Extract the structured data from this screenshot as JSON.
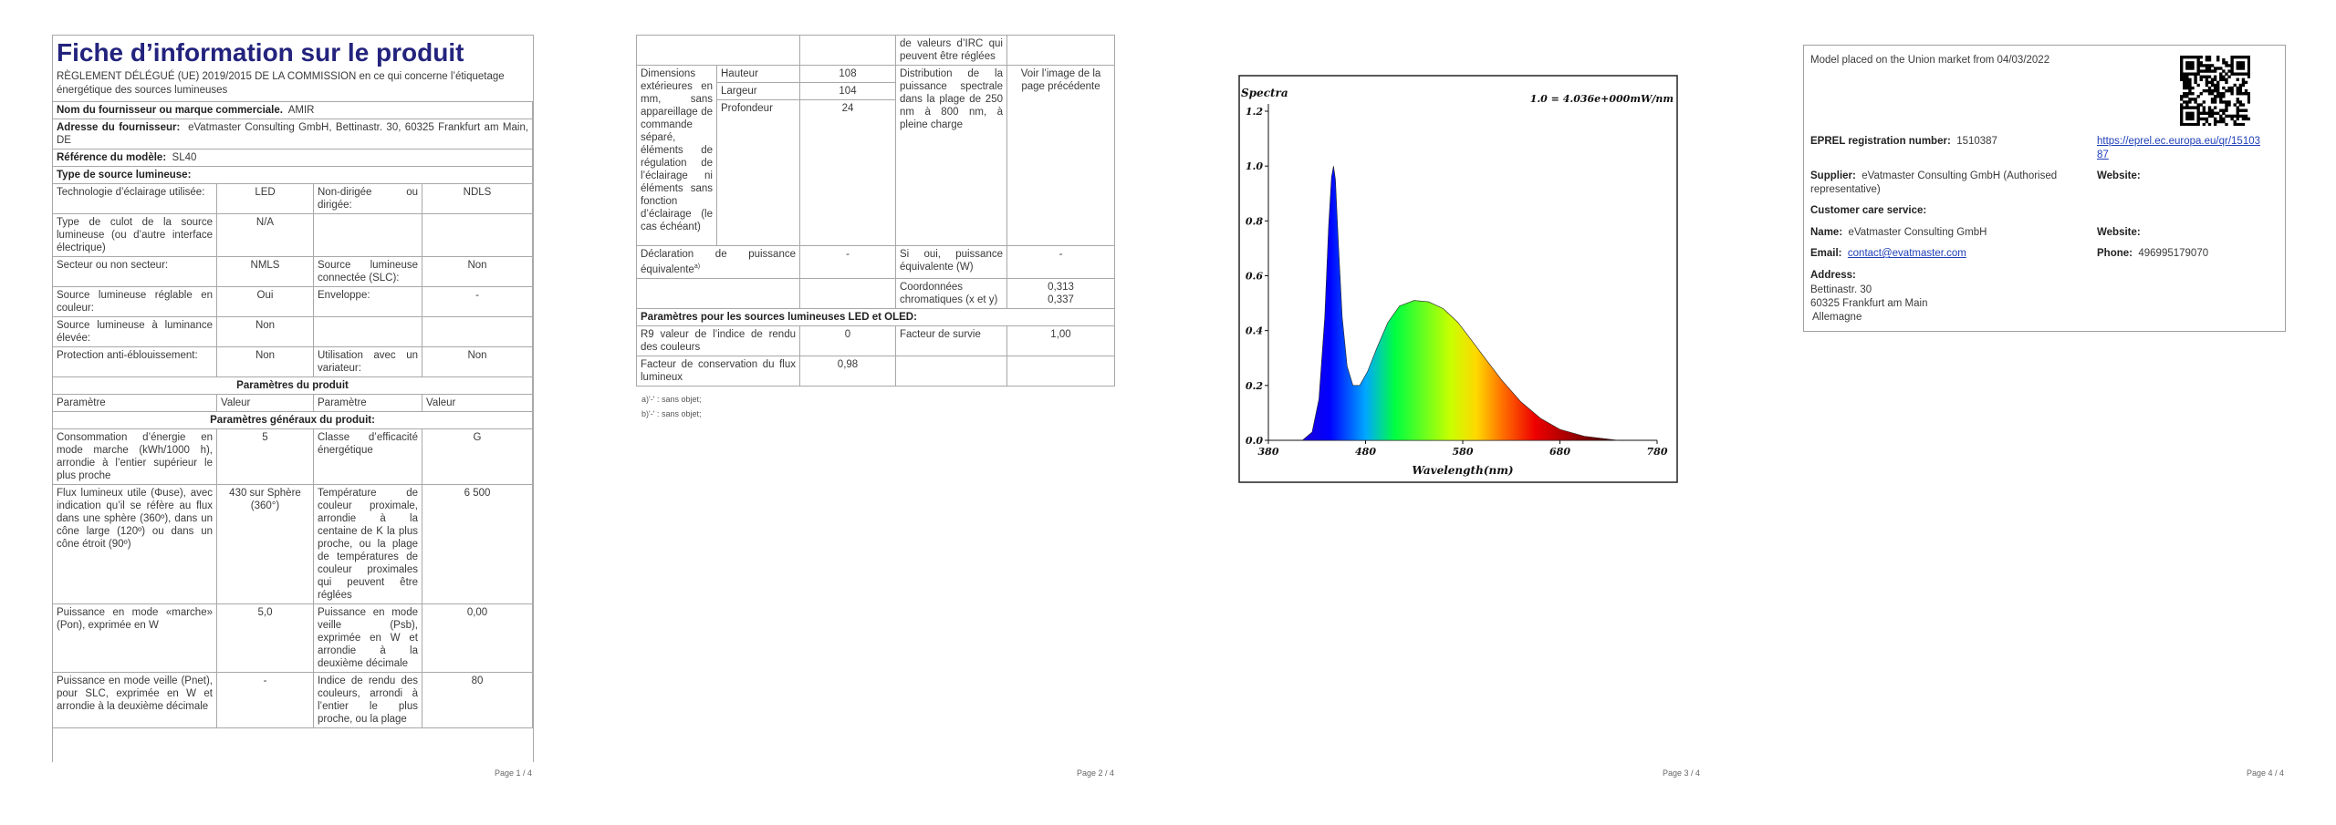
{
  "page1": {
    "title": "Fiche d’information sur le produit",
    "subtitle": "RÈGLEMENT DÉLÉGUÉ (UE) 2019/2015 DE LA COMMISSION en ce qui concerne l’étiquetage énergétique des sources lumineuses",
    "fields": [
      {
        "label": "Nom du fournisseur ou marque commerciale.",
        "value": "AMIR"
      },
      {
        "label": "Adresse du fournisseur:",
        "value": "eVatmaster Consulting GmbH, Bettinastr. 30, 60325 Frankfurt am Main, DE"
      },
      {
        "label": "Référence du modèle:",
        "value": "SL40"
      }
    ],
    "type_heading": "Type de source lumineuse:",
    "type_rows": [
      [
        "Technologie d’éclairage utilisée:",
        "LED",
        "Non-dirigée ou dirigée:",
        "NDLS"
      ],
      [
        "Type de culot de la source lumineuse (ou d’autre interface électrique)",
        "N/A",
        null,
        null
      ],
      [
        "Secteur ou non secteur:",
        "NMLS",
        "Source lumineuse connectée (SLC):",
        "Non"
      ],
      [
        "Source lumineuse réglable en couleur:",
        "Oui",
        "Enveloppe:",
        "-"
      ],
      [
        "Source lumineuse à luminance élevée:",
        "Non",
        null,
        null
      ],
      [
        "Protection anti-éblouissement:",
        "Non",
        "Utilisation avec un variateur:",
        "Non"
      ]
    ],
    "params_heading": "Paramètres du produit",
    "params_header": [
      "Paramètre",
      "Valeur",
      "Paramètre",
      "Valeur"
    ],
    "general_heading": "Paramètres généraux du produit:",
    "general_rows": [
      [
        "Consommation d’énergie en mode marche (kWh/1000 h), arrondie à l’entier supérieur le plus proche",
        "5",
        "Classe d’efficacité énergétique",
        "G"
      ],
      [
        "Flux lumineux utile (Φuse), avec indication qu’il se réfère au flux dans une sphère (360º), dans un cône large (120º) ou dans un cône étroit (90º)",
        "430 sur Sphère (360°)",
        "Température de couleur proximale, arrondie à la centaine de K la plus proche, ou la plage de températures de couleur proximales qui peuvent être réglées",
        "6 500"
      ],
      [
        "Puissance en mode «marche» (Pon), exprimée en W",
        "5,0",
        "Puissance en mode veille (Psb), exprimée en W et arrondie à la deuxième décimale",
        "0,00"
      ],
      [
        "Puissance en mode veille (Pnet), pour SLC, exprimée en W et arrondie à la deuxième décimale",
        "-",
        "Indice de rendu des couleurs, arrondi à l’entier le plus proche, ou la plage",
        "80"
      ]
    ],
    "footer": "Page 1 / 4"
  },
  "page2": {
    "top_text": "de valeurs d’IRC qui peuvent être réglées",
    "dimensions": {
      "label": "Dimensions extérieures en mm, sans appareillage de commande séparé, éléments de régulation de l’éclairage ni éléments sans fonction d’éclairage (le cas échéant)",
      "items": [
        {
          "name": "Hauteur",
          "value": "108"
        },
        {
          "name": "Largeur",
          "value": "104"
        },
        {
          "name": "Profondeur",
          "value": "24"
        }
      ]
    },
    "spd": {
      "label": "Distribution de la puissance spectrale dans la plage de 250 nm à 800 nm, à pleine charge",
      "value": "Voir l’image de la page précédente"
    },
    "equiv": {
      "label": "Déclaration de puissance équivalente",
      "note": "a)",
      "value": "-",
      "label2": "Si oui, puissance équivalente (W)",
      "value2": "-"
    },
    "chroma": {
      "label": "Coordonnées chromatiques (x et y)",
      "values": [
        "0,313",
        "0,337"
      ]
    },
    "led_heading": "Paramètres pour les sources lumineuses LED et OLED:",
    "r9": {
      "label": "R9 valeur de l’indice de rendu des couleurs",
      "value": "0",
      "label2": "Facteur de survie",
      "value2": "1,00"
    },
    "flux": {
      "label": "Facteur de conservation du flux lumineux",
      "value": "0,98"
    },
    "footnotes": [
      "a)'-' : sans objet;",
      "b)'-' : sans objet;"
    ],
    "footer": "Page 2 / 4"
  },
  "page3": {
    "y_title": "Spectra",
    "scale_note": "1.0 = 4.036e+000mW/nm",
    "x_title": "Wavelength(nm)",
    "x_ticks": [
      "380",
      "480",
      "580",
      "680",
      "780"
    ],
    "y_ticks": [
      "0.0",
      "0.2",
      "0.4",
      "0.6",
      "0.8",
      "1.0",
      "1.2"
    ],
    "footer": "Page 3 / 4"
  },
  "page4": {
    "market": "Model placed on the Union market from 04/03/2022",
    "eprel_label": "EPREL registration number:",
    "eprel_value": "1510387",
    "eprel_link": "https://eprel.ec.europa.eu/qr/1510387",
    "supplier_label": "Supplier:",
    "supplier_value": "eVatmaster Consulting GmbH (Authorised representative)",
    "website_label": "Website:",
    "care_heading": "Customer care service:",
    "name_label": "Name:",
    "name_value": "eVatmaster Consulting GmbH",
    "website2_label": "Website:",
    "email_label": "Email:",
    "email_value": "contact@evatmaster.com",
    "phone_label": "Phone:",
    "phone_value": "496995179070",
    "address_label": "Address:",
    "address_lines": [
      "Bettinastr. 30",
      "60325 Frankfurt am Main",
      "Allemagne"
    ],
    "footer": "Page 4 / 4"
  }
}
